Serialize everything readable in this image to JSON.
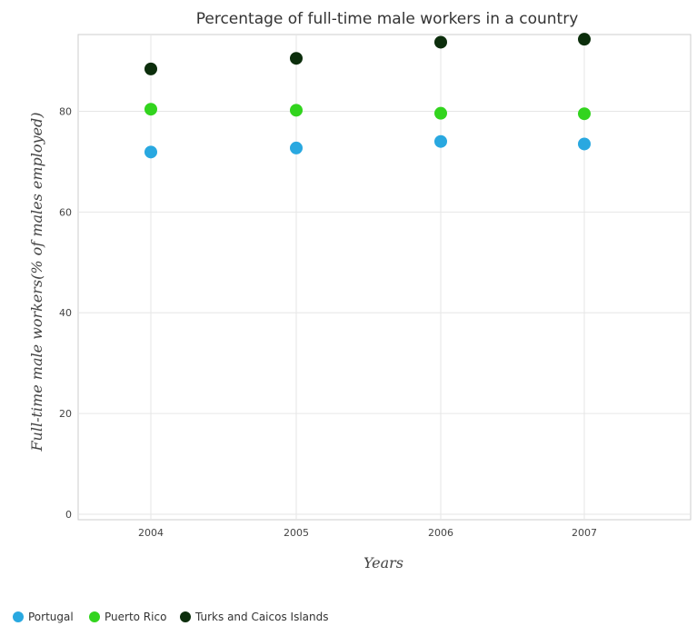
{
  "chart_data": {
    "type": "scatter",
    "title": "Percentage of full-time male workers in a country",
    "xlabel": "Years",
    "ylabel": "Full-time male workers(% of males employed)",
    "categories": [
      "2004",
      "2005",
      "2006",
      "2007"
    ],
    "ylim": [
      0,
      95.5
    ],
    "yticks": [
      0,
      20,
      40,
      60,
      80
    ],
    "grid": true,
    "legend_position": "bottom-left",
    "series": [
      {
        "name": "Portugal",
        "color": "#29a8e0",
        "values": [
          71.9,
          72.7,
          74.0,
          73.5
        ]
      },
      {
        "name": "Puerto Rico",
        "color": "#32d41e",
        "values": [
          80.4,
          80.2,
          79.6,
          79.5
        ]
      },
      {
        "name": "Turks and Caicos Islands",
        "color": "#0c2e0c",
        "values": [
          88.4,
          90.5,
          93.7,
          94.3
        ]
      }
    ]
  }
}
